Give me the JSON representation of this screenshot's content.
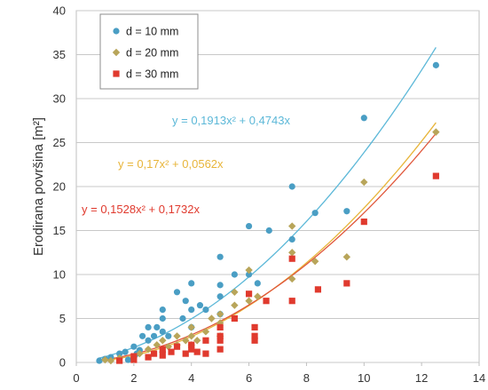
{
  "chart_data": {
    "type": "scatter",
    "ylabel": "Erodirana površina [m²]",
    "xlabel": "",
    "xlim": [
      0,
      14
    ],
    "ylim": [
      0,
      40
    ],
    "xticks": [
      0,
      2,
      4,
      6,
      8,
      10,
      12,
      14
    ],
    "yticks": [
      0,
      5,
      10,
      15,
      20,
      25,
      30,
      35,
      40
    ],
    "grid": "horizontal",
    "legend_position": "top-left",
    "series": [
      {
        "name": "d = 10 mm",
        "color": "#4a9ec4",
        "marker": "circle",
        "trend_label": "y = 0,1913x² + 0,4743x",
        "trend_color": "#5cb8d8",
        "trend_a": 0.1913,
        "trend_b": 0.4743,
        "points": [
          [
            0.8,
            0.2
          ],
          [
            1.0,
            0.4
          ],
          [
            1.2,
            0.6
          ],
          [
            1.5,
            1.0
          ],
          [
            1.7,
            1.2
          ],
          [
            1.8,
            0.3
          ],
          [
            2.0,
            1.8
          ],
          [
            2.1,
            1.0
          ],
          [
            2.2,
            1.4
          ],
          [
            2.3,
            3.0
          ],
          [
            2.5,
            4.0
          ],
          [
            2.5,
            2.5
          ],
          [
            2.7,
            3.0
          ],
          [
            2.8,
            4.0
          ],
          [
            3.0,
            6.0
          ],
          [
            3.0,
            5.0
          ],
          [
            3.0,
            3.5
          ],
          [
            3.2,
            3.0
          ],
          [
            3.5,
            8.0
          ],
          [
            3.7,
            5.0
          ],
          [
            3.8,
            7.0
          ],
          [
            4.0,
            9.0
          ],
          [
            4.0,
            6.0
          ],
          [
            4.0,
            4.0
          ],
          [
            4.3,
            6.5
          ],
          [
            4.5,
            6.0
          ],
          [
            5.0,
            12.0
          ],
          [
            5.0,
            8.8
          ],
          [
            5.0,
            7.5
          ],
          [
            5.0,
            5.5
          ],
          [
            5.5,
            10.0
          ],
          [
            6.0,
            15.5
          ],
          [
            6.0,
            10.0
          ],
          [
            6.3,
            9.0
          ],
          [
            6.7,
            15.0
          ],
          [
            7.5,
            20.0
          ],
          [
            7.5,
            14.0
          ],
          [
            8.3,
            17.0
          ],
          [
            9.4,
            17.2
          ],
          [
            10.0,
            27.8
          ],
          [
            12.5,
            33.8
          ]
        ]
      },
      {
        "name": "d = 20 mm",
        "color": "#b8a55a",
        "marker": "diamond",
        "trend_label": "y = 0,17x² + 0,0562x",
        "trend_color": "#e8b53a",
        "trend_a": 0.17,
        "trend_b": 0.0562,
        "points": [
          [
            1.0,
            0.3
          ],
          [
            1.2,
            0.2
          ],
          [
            1.5,
            0.5
          ],
          [
            2.0,
            0.6
          ],
          [
            2.2,
            1.0
          ],
          [
            2.5,
            1.5
          ],
          [
            2.8,
            2.0
          ],
          [
            3.0,
            2.5
          ],
          [
            3.0,
            1.2
          ],
          [
            3.2,
            1.8
          ],
          [
            3.5,
            3.0
          ],
          [
            3.5,
            2.0
          ],
          [
            3.8,
            2.5
          ],
          [
            4.0,
            4.0
          ],
          [
            4.0,
            3.0
          ],
          [
            4.0,
            2.0
          ],
          [
            4.2,
            2.5
          ],
          [
            4.5,
            3.5
          ],
          [
            4.7,
            5.0
          ],
          [
            5.0,
            5.5
          ],
          [
            5.0,
            4.5
          ],
          [
            5.0,
            3.0
          ],
          [
            5.5,
            6.5
          ],
          [
            5.5,
            8.0
          ],
          [
            6.0,
            10.5
          ],
          [
            6.0,
            7.0
          ],
          [
            6.3,
            7.5
          ],
          [
            7.5,
            15.5
          ],
          [
            7.5,
            9.5
          ],
          [
            7.5,
            12.5
          ],
          [
            8.3,
            11.5
          ],
          [
            9.4,
            12.0
          ],
          [
            10.0,
            20.5
          ],
          [
            12.5,
            26.2
          ]
        ]
      },
      {
        "name": "d = 30 mm",
        "color": "#e03a2e",
        "marker": "square",
        "trend_label": "y = 0,1528x² + 0,1732x",
        "trend_color": "#e0573b",
        "trend_a": 0.1528,
        "trend_b": 0.1732,
        "points": [
          [
            1.5,
            0.2
          ],
          [
            2.0,
            0.3
          ],
          [
            2.0,
            0.7
          ],
          [
            2.5,
            0.6
          ],
          [
            2.7,
            1.0
          ],
          [
            3.0,
            0.8
          ],
          [
            3.0,
            1.5
          ],
          [
            3.3,
            1.2
          ],
          [
            3.5,
            1.8
          ],
          [
            3.8,
            1.0
          ],
          [
            4.0,
            1.5
          ],
          [
            4.0,
            2.0
          ],
          [
            4.2,
            1.2
          ],
          [
            4.5,
            2.5
          ],
          [
            4.5,
            1.0
          ],
          [
            5.0,
            1.5
          ],
          [
            5.0,
            2.5
          ],
          [
            5.0,
            3.0
          ],
          [
            5.0,
            4.0
          ],
          [
            5.5,
            5.0
          ],
          [
            6.0,
            7.8
          ],
          [
            6.2,
            4.0
          ],
          [
            6.2,
            2.5
          ],
          [
            6.2,
            3.0
          ],
          [
            6.6,
            7.0
          ],
          [
            7.5,
            11.8
          ],
          [
            7.5,
            7.0
          ],
          [
            8.4,
            8.3
          ],
          [
            9.4,
            9.0
          ],
          [
            10.0,
            16.0
          ],
          [
            12.5,
            21.2
          ]
        ]
      }
    ]
  }
}
